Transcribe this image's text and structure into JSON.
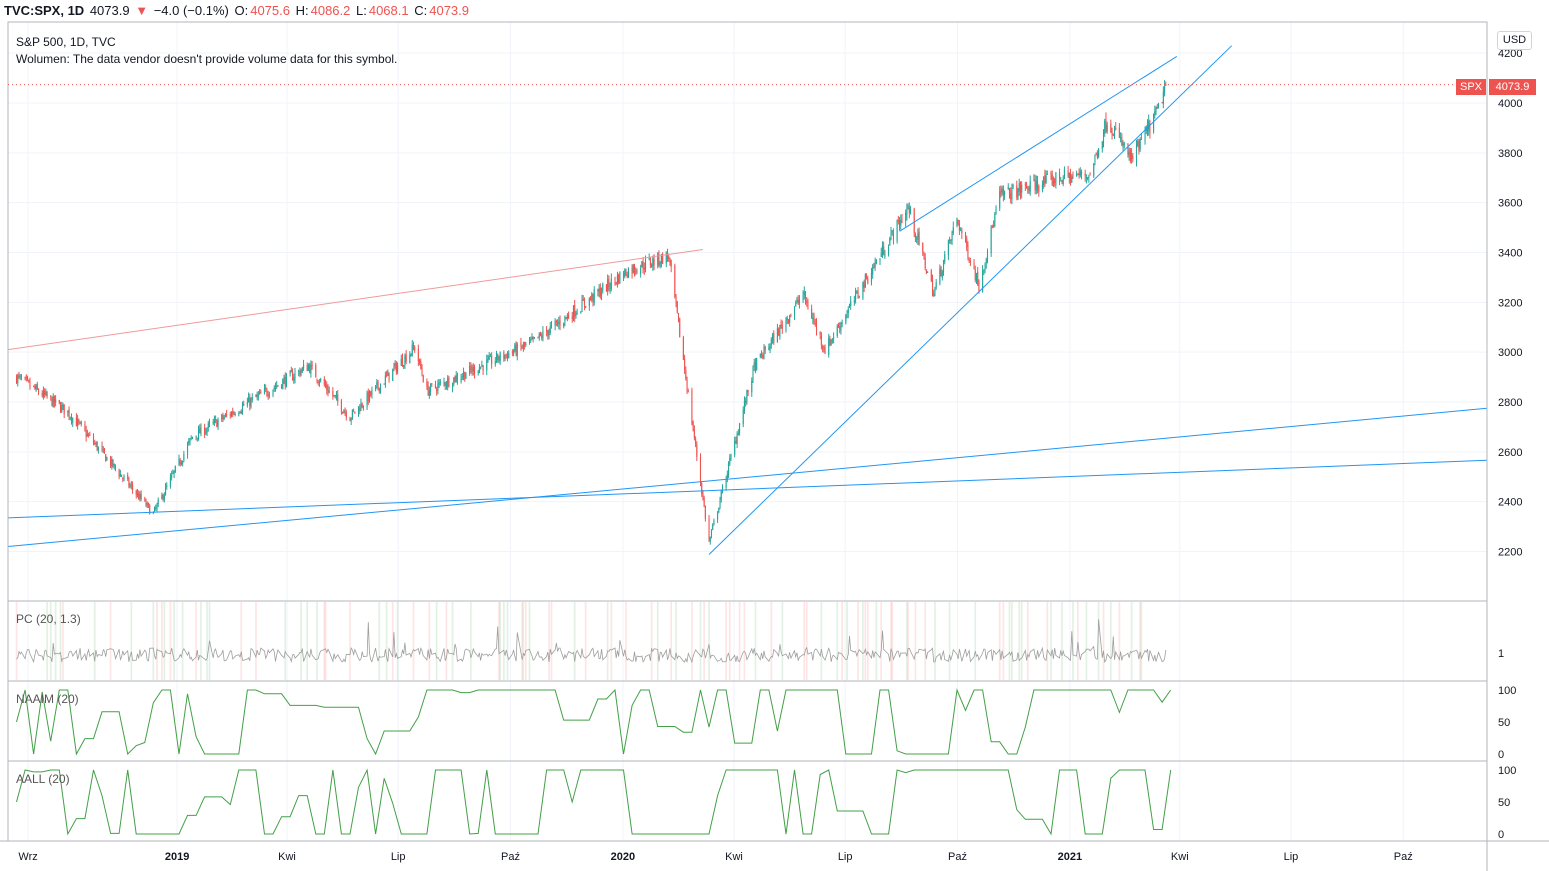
{
  "header": {
    "symbol": "TVC:SPX, 1D",
    "last": "4073.9",
    "arrow": "▼",
    "change": "−4.0 (−0.1%)",
    "o_label": "O:",
    "o_value": "4075.6",
    "h_label": "H:",
    "h_value": "4086.2",
    "l_label": "L:",
    "l_value": "4068.1",
    "c_label": "C:",
    "c_value": "4073.9"
  },
  "main_pane": {
    "title": "S&P 500, 1D, TVC",
    "volume_note": "Wolumen: The data vendor doesn't provide volume data for this symbol.",
    "currency": "USD",
    "price_tag_symbol": "SPX",
    "price_tag_value": "4073.9"
  },
  "indicators": {
    "pc_title": "PC (20, 1.3)",
    "naaim_title": "NAAIM (20)",
    "aall_title": "AALL (20)"
  },
  "colors": {
    "up": "#26a69a",
    "down": "#ef5350",
    "trend_blue": "#2196f3",
    "trend_red": "#ef9a9a",
    "indicator_green": "#43a047",
    "grid": "#f0f3fa"
  },
  "chart_data": [
    {
      "type": "candlestick",
      "series": [
        {
          "name": "S&P 500",
          "ohlc_last": {
            "open": 4075.6,
            "high": 4086.2,
            "low": 4068.1,
            "close": 4073.9
          }
        }
      ],
      "x": [
        "2018-09-03",
        "2018-10-15",
        "2018-12-24",
        "2019-01-25",
        "2019-04-30",
        "2019-06-03",
        "2019-07-26",
        "2019-08-05",
        "2019-10-31",
        "2020-01-17",
        "2020-02-19",
        "2020-03-23",
        "2020-04-29",
        "2020-06-08",
        "2020-06-26",
        "2020-09-02",
        "2020-09-23",
        "2020-10-12",
        "2020-10-30",
        "2020-11-16",
        "2021-01-04",
        "2021-01-29",
        "2021-02-12",
        "2021-03-04",
        "2021-03-26",
        "2021-04-01"
      ],
      "close": [
        2900,
        2760,
        2351,
        2660,
        2945,
        2740,
        3020,
        2845,
        3040,
        3330,
        3386,
        2237,
        2940,
        3232,
        3010,
        3580,
        3237,
        3535,
        3270,
        3627,
        3700,
        3714,
        3935,
        3770,
        3974,
        4074
      ],
      "ylim": [
        2000,
        4250
      ],
      "yticks": [
        2200,
        2400,
        2600,
        2800,
        3000,
        3200,
        3400,
        3600,
        3800,
        4000,
        4200
      ],
      "xticks": [
        "Wrz",
        "2019",
        "Kwi",
        "Lip",
        "Paź",
        "2020",
        "Kwi",
        "Lip",
        "Paź",
        "2021",
        "Kwi",
        "Lip",
        "Paź"
      ]
    },
    {
      "type": "line",
      "title": "PC (20, 1.3)",
      "yticks": [
        1
      ]
    },
    {
      "type": "line",
      "title": "NAAIM (20)",
      "ylim": [
        0,
        100
      ],
      "yticks": [
        0,
        50,
        100
      ]
    },
    {
      "type": "line",
      "title": "AALL (20)",
      "ylim": [
        0,
        100
      ],
      "yticks": [
        0,
        50,
        100
      ]
    }
  ]
}
